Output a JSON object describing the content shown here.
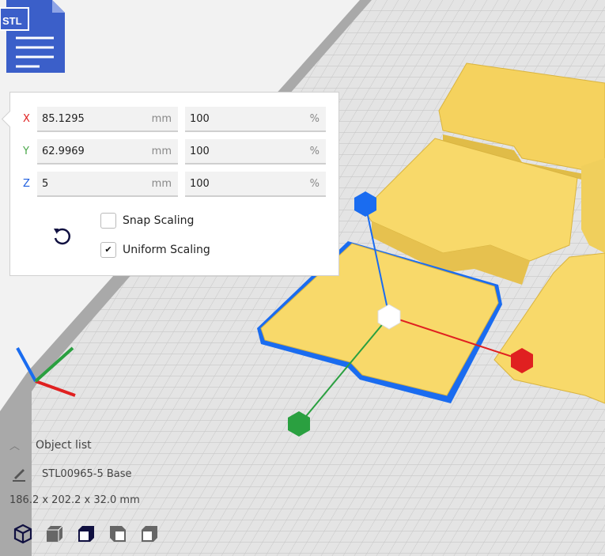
{
  "file_badge": {
    "label": "STL",
    "color": "#3b5fc9"
  },
  "scale_panel": {
    "rows": [
      {
        "axis": "X",
        "axis_color": "#e02020",
        "mm": "85.1295",
        "mm_unit": "mm",
        "percent": "100",
        "percent_unit": "%"
      },
      {
        "axis": "Y",
        "axis_color": "#4aa84a",
        "mm": "62.9969",
        "mm_unit": "mm",
        "percent": "100",
        "percent_unit": "%"
      },
      {
        "axis": "Z",
        "axis_color": "#2060e0",
        "mm": "5",
        "mm_unit": "mm",
        "percent": "100",
        "percent_unit": "%"
      }
    ],
    "reset_icon": "rotate-ccw-icon",
    "snap_scaling": {
      "label": "Snap Scaling",
      "checked": false
    },
    "uniform_scaling": {
      "label": "Uniform Scaling",
      "checked": true
    }
  },
  "object_list": {
    "header": "Object list",
    "object_name": "STL00965-5 Base",
    "dimensions": "186.2 x 202.2 x 32.0 mm"
  },
  "view_buttons": [
    "3d-view",
    "front-view",
    "top-view",
    "left-view",
    "right-view"
  ],
  "colors": {
    "model": "#f8d96a",
    "selection": "#1a6cf0",
    "plate": "#d8d8d8",
    "accent": "#101040"
  }
}
